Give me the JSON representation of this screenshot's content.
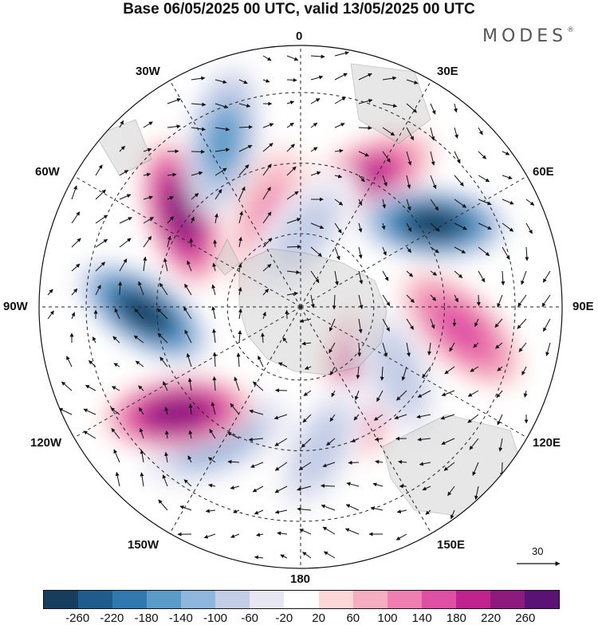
{
  "title": "Base 06/05/2025 00 UTC, valid 13/05/2025 00 UTC",
  "brand": "MODES",
  "brand_mark": "®",
  "longitude_labels": {
    "lon_0": "0",
    "lon_30e": "30E",
    "lon_60e": "60E",
    "lon_90e": "90E",
    "lon_120e": "120E",
    "lon_150e": "150E",
    "lon_180": "180",
    "lon_150w": "150W",
    "lon_120w": "120W",
    "lon_90w": "90W",
    "lon_60w": "60W",
    "lon_30w": "30W"
  },
  "vector_scale": "30",
  "colorbar": {
    "ticks": [
      "-260",
      "-220",
      "-180",
      "-140",
      "-100",
      "-60",
      "-20",
      "20",
      "60",
      "100",
      "140",
      "180",
      "220",
      "260"
    ],
    "colors": [
      "#173d5e",
      "#1f5c8c",
      "#2f79b0",
      "#5a9bc9",
      "#8fb6dc",
      "#c3cde6",
      "#e7e6f3",
      "#ffffff",
      "#fbd7d7",
      "#f5aebf",
      "#ee7fb0",
      "#df50a4",
      "#c1238e",
      "#8e1a80",
      "#5b1175"
    ]
  },
  "map": {
    "projection": "south-polar-stereographic",
    "anomalies": [
      {
        "lon": 27,
        "r": 0.55,
        "value": 190
      },
      {
        "lon": 58,
        "r": 0.6,
        "value": -270
      },
      {
        "lon": 98,
        "r": 0.62,
        "value": 170
      },
      {
        "lon": 142,
        "r": 0.37,
        "value": 180
      },
      {
        "lon": 124,
        "r": 0.45,
        "value": -80
      },
      {
        "lon": 172,
        "r": 0.55,
        "value": -90
      },
      {
        "lon": -148,
        "r": 0.6,
        "value": -130
      },
      {
        "lon": -131,
        "r": 0.62,
        "value": 250
      },
      {
        "lon": -92,
        "r": 0.6,
        "value": -270
      },
      {
        "lon": -52,
        "r": 0.58,
        "value": 250
      },
      {
        "lon": -25,
        "r": 0.7,
        "value": -160
      },
      {
        "lon": -20,
        "r": 0.35,
        "value": 110
      },
      {
        "lon": 3,
        "r": 0.28,
        "value": -90
      }
    ]
  }
}
